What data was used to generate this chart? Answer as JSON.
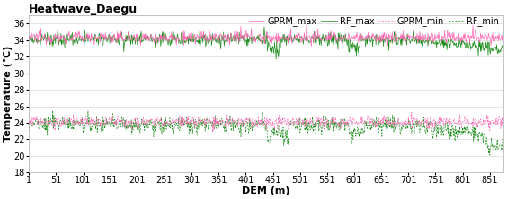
{
  "title": "Heatwave_Daegu",
  "xlabel": "DEM (m)",
  "ylabel": "Temperature (℃)",
  "xlim": [
    1,
    876
  ],
  "ylim": [
    18,
    37
  ],
  "yticks": [
    18,
    20,
    22,
    24,
    26,
    28,
    30,
    32,
    34,
    36
  ],
  "xtick_positions": [
    1,
    51,
    101,
    151,
    201,
    251,
    301,
    351,
    401,
    451,
    501,
    551,
    601,
    651,
    701,
    751,
    801,
    851
  ],
  "xtick_labels": [
    "1",
    "51",
    "101",
    "151",
    "201",
    "251",
    "301",
    "351",
    "401",
    "451",
    "501",
    "551",
    "601",
    "651",
    "701",
    "751",
    "801",
    "851"
  ],
  "gprm_max_color": "#FF69B4",
  "rf_max_color": "#1a8c1a",
  "gprm_min_color": "#FF69B4",
  "rf_min_color": "#1a8c1a",
  "gprm_max_mean": 34.3,
  "rf_max_mean": 34.1,
  "gprm_min_mean": 24.1,
  "rf_min_mean": 23.8,
  "n_points": 876,
  "seed": 12345,
  "title_fontsize": 9,
  "axis_fontsize": 8,
  "tick_fontsize": 7,
  "legend_fontsize": 7,
  "background_color": "#ffffff",
  "grid_color": "#d0d0d0"
}
